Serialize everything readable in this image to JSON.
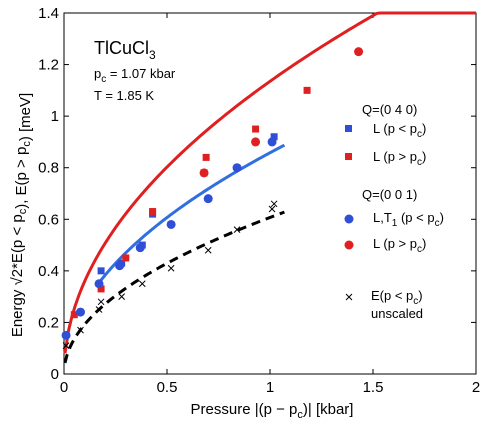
{
  "chart_data": {
    "type": "scatter",
    "xlabel": "Pressure |(p − p_c)| [kbar]",
    "ylabel": "Energy √2*E(p < p_c), E(p > p_c) [meV]",
    "xlim": [
      0,
      2
    ],
    "ylim": [
      0,
      1.4
    ],
    "xticks": [
      0,
      0.5,
      1,
      1.5,
      2
    ],
    "yticks": [
      0,
      0.2,
      0.4,
      0.6,
      0.8,
      1,
      1.2,
      1.4
    ],
    "grid": false,
    "legend_position": "right",
    "annotations": {
      "compound": "TlCuCl",
      "compound_subscript": "3",
      "pc_line": "p",
      "pc_sub": "c",
      "pc_value": " = 1.07 kbar",
      "temperature": "T = 1.85 K"
    },
    "legend": {
      "group1_title": "Q=(0 4 0)",
      "group2_title": "Q=(0 0 1)",
      "L_label": "L (p < p",
      "L_label_gt": "L (p > p",
      "LT1_label": "L,T",
      "LT1_sub": "1",
      "LT1_rest": " (p < p",
      "sub_c": "c",
      "close_paren": ")",
      "x_label_line1": "E(p < p",
      "x_label_line1_close": ")",
      "x_label_line2": "unscaled"
    },
    "series": [
      {
        "name": "L (p < pc) Q=(0 4 0)",
        "marker": "square",
        "color": "#2f4fd6",
        "points": [
          [
            0.18,
            0.4
          ],
          [
            0.28,
            0.43
          ],
          [
            0.38,
            0.5
          ],
          [
            0.43,
            0.62
          ],
          [
            0.68,
            0.78
          ],
          [
            1.02,
            0.92
          ]
        ]
      },
      {
        "name": "L (p > pc) Q=(0 4 0)",
        "marker": "square",
        "color": "#e02020",
        "points": [
          [
            0.05,
            0.23
          ],
          [
            0.18,
            0.33
          ],
          [
            0.3,
            0.45
          ],
          [
            0.43,
            0.63
          ],
          [
            0.69,
            0.84
          ],
          [
            0.93,
            0.95
          ],
          [
            1.18,
            1.1
          ]
        ]
      },
      {
        "name": "L,T1 (p < pc) Q=(0 0 1)",
        "marker": "circle",
        "color": "#2f4fd6",
        "points": [
          [
            0.01,
            0.15
          ],
          [
            0.08,
            0.24
          ],
          [
            0.17,
            0.35
          ],
          [
            0.27,
            0.42
          ],
          [
            0.37,
            0.49
          ],
          [
            0.52,
            0.58
          ],
          [
            0.7,
            0.68
          ],
          [
            0.84,
            0.8
          ],
          [
            1.01,
            0.9
          ]
        ]
      },
      {
        "name": "L (p > pc) Q=(0 0 1)",
        "marker": "circle",
        "color": "#e02020",
        "points": [
          [
            0.68,
            0.78
          ],
          [
            0.93,
            0.9
          ],
          [
            1.43,
            1.25
          ]
        ]
      },
      {
        "name": "E(p < pc) unscaled",
        "marker": "x",
        "color": "#000000",
        "points": [
          [
            0.01,
            0.11
          ],
          [
            0.08,
            0.17
          ],
          [
            0.17,
            0.25
          ],
          [
            0.18,
            0.28
          ],
          [
            0.28,
            0.3
          ],
          [
            0.38,
            0.35
          ],
          [
            0.52,
            0.41
          ],
          [
            0.7,
            0.48
          ],
          [
            0.84,
            0.56
          ],
          [
            1.01,
            0.64
          ],
          [
            1.02,
            0.66
          ]
        ]
      }
    ],
    "fit_curves": [
      {
        "style": "solid",
        "color": "#e02020",
        "coef": 1.135,
        "x_range": [
          0.005,
          2.0
        ]
      },
      {
        "style": "solid",
        "color": "#2f6fe0",
        "coef": 0.858,
        "x_range": [
          0.17,
          1.07
        ]
      },
      {
        "style": "dashed",
        "color": "#000000",
        "coef": 0.607,
        "x_range": [
          0.005,
          1.07
        ]
      }
    ]
  }
}
